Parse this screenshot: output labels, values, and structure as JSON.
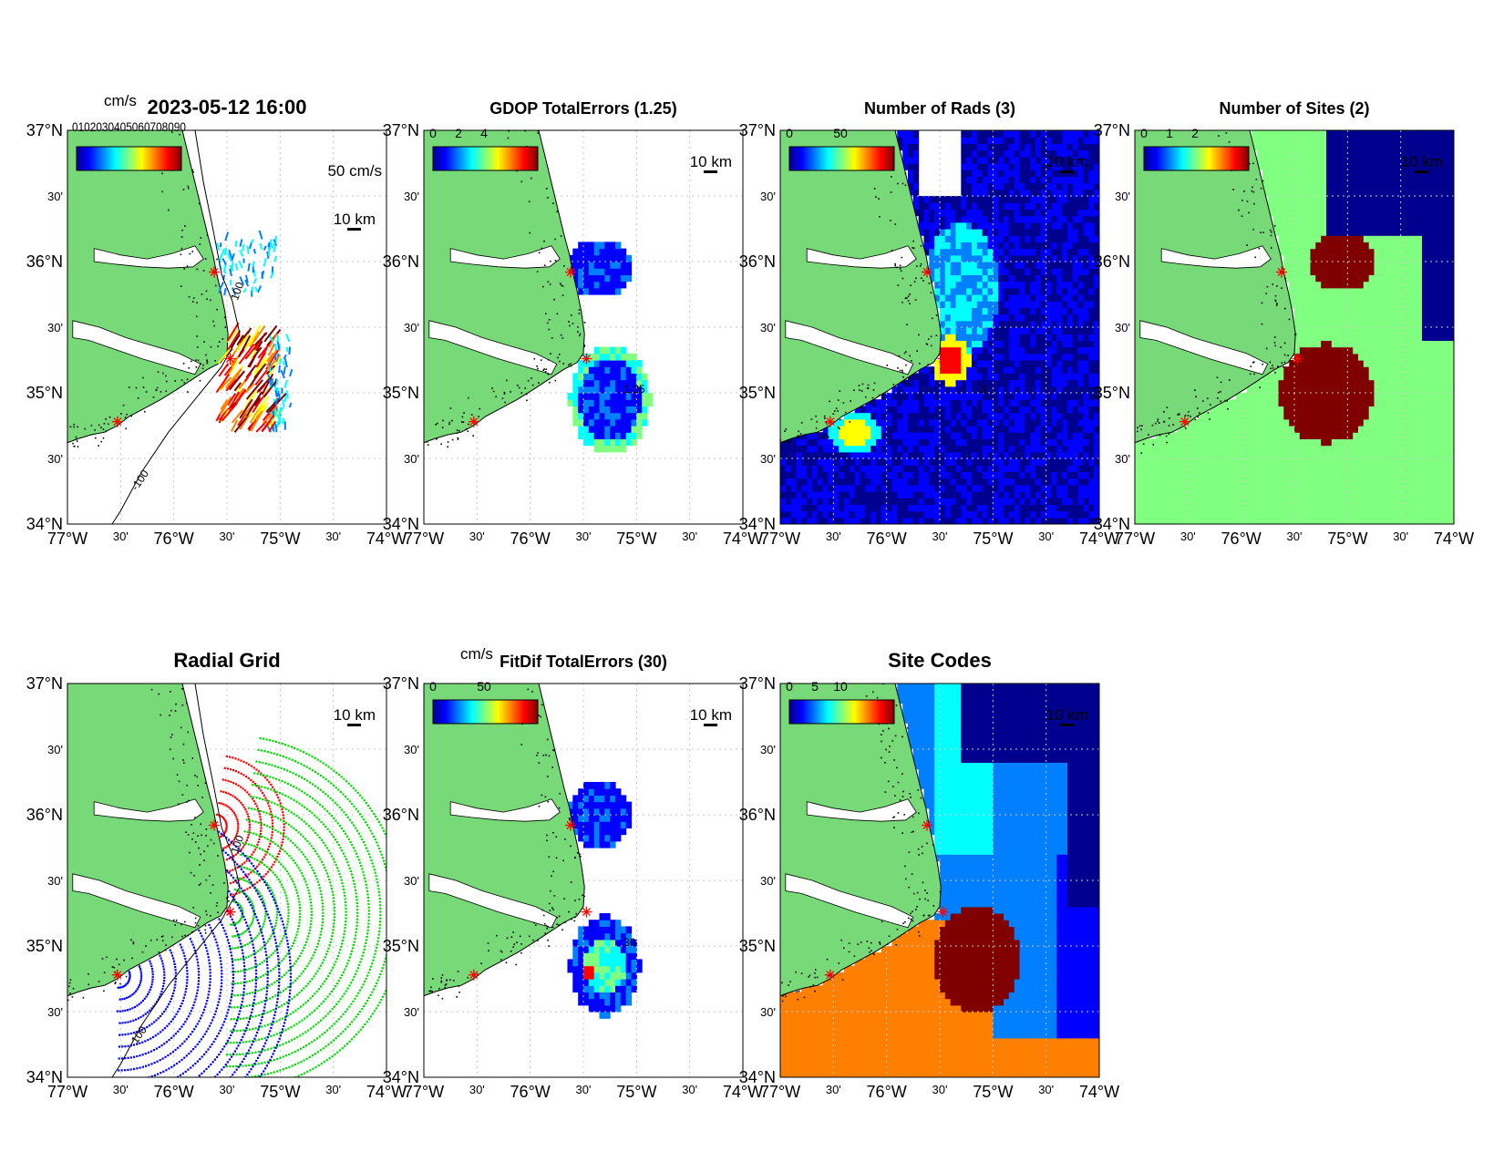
{
  "figure": {
    "axes": {
      "lat_labels": [
        "37°N",
        "30'",
        "36°N",
        "30'",
        "35°N",
        "30'",
        "34°N"
      ],
      "lon_labels": [
        "77°W",
        "30'",
        "76°W",
        "30'",
        "75°W",
        "30'",
        "74°W"
      ],
      "lat_range": [
        34,
        37
      ],
      "lon_range": [
        -77,
        -74
      ]
    },
    "scale_bar_label": "10 km",
    "colors": {
      "land": "#77d977",
      "coast": "#000000",
      "site_marker": "#ff0000",
      "grid": "#c8c8c8",
      "cmap_jet": [
        "#00008f",
        "#0000ff",
        "#0080ff",
        "#00ffff",
        "#80ff80",
        "#ffff00",
        "#ff8000",
        "#ff0000",
        "#800000"
      ]
    },
    "sites": [
      {
        "lon": -75.62,
        "lat": 35.92
      },
      {
        "lon": -75.47,
        "lat": 35.26
      },
      {
        "lon": -76.53,
        "lat": 34.78
      }
    ],
    "panels": [
      {
        "id": "total-velocity",
        "title": "2023-05-12 16:00",
        "colorbar_label": "cm/s",
        "colorbar_ticks": [],
        "overlapped_ticks": "0102030405060708090",
        "vector_scale_label": "50 cm/s",
        "contour_label": "100",
        "contour_label_2": "-100"
      },
      {
        "id": "gdop",
        "title": "GDOP TotalErrors (1.25)",
        "colorbar_label": "",
        "colorbar_ticks": [
          "0",
          "2",
          "4"
        ],
        "contour_label": "1.25"
      },
      {
        "id": "num-rads",
        "title": "Number of Rads (3)",
        "colorbar_label": "",
        "colorbar_ticks": [
          "0",
          "50"
        ],
        "contour_label": "3"
      },
      {
        "id": "num-sites",
        "title": "Number of Sites (2)",
        "colorbar_label": "",
        "colorbar_ticks": [
          "0",
          "1",
          "2"
        ]
      },
      {
        "id": "radial-grid",
        "title": "Radial Grid",
        "contour_label": "100",
        "contour_label_2": "100",
        "radial_site_colors": [
          "#ff0000",
          "#00dd00",
          "#0000ff"
        ]
      },
      {
        "id": "fitdif",
        "title": "FitDif TotalErrors (30)",
        "colorbar_label": "cm/s",
        "colorbar_ticks": [
          "0",
          "50"
        ],
        "contour_label": "30"
      },
      {
        "id": "site-codes",
        "title": "Site Codes",
        "colorbar_label": "",
        "colorbar_ticks": [
          "0",
          "5",
          "10"
        ]
      }
    ]
  }
}
